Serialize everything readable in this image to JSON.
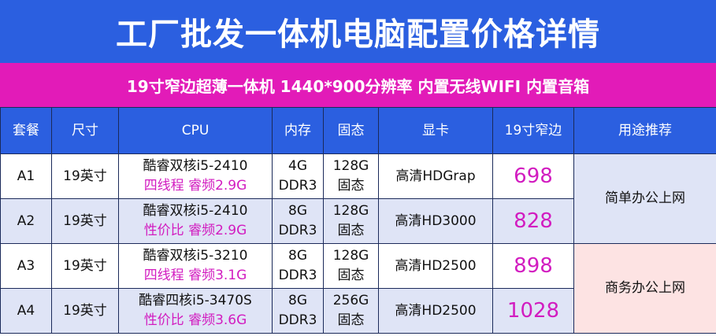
{
  "header": {
    "title": "工厂批发一体机电脑配置价格详情",
    "subtitle": "19寸窄边超薄一体机  1440*900分辨率 内置无线WIFI 内置音箱"
  },
  "table": {
    "columns": [
      "套餐",
      "尺寸",
      "CPU",
      "内存",
      "固态",
      "显卡",
      "19寸窄边",
      "用途推荐"
    ],
    "rows": [
      {
        "package": "A1",
        "size": "19英寸",
        "cpu": [
          "酷睿双核i5-2410",
          "四线程 睿频2.9G"
        ],
        "memory": [
          "4G",
          "DDR3"
        ],
        "ssd": [
          "128G",
          "固态"
        ],
        "gpu": "高清HDGrap",
        "price": 698
      },
      {
        "package": "A2",
        "size": "19英寸",
        "cpu": [
          "酷睿双核i5-2410",
          "性价比 睿频2.9G"
        ],
        "memory": [
          "8G",
          "DDR3"
        ],
        "ssd": [
          "128G",
          "固态"
        ],
        "gpu": "高清HD3000",
        "price": 828
      },
      {
        "package": "A3",
        "size": "19英寸",
        "cpu": [
          "酷睿双核i5-3210",
          "四线程 睿频3.1G"
        ],
        "memory": [
          "8G",
          "DDR3"
        ],
        "ssd": [
          "128G",
          "固态"
        ],
        "gpu": "高清HD2500",
        "price": 898
      },
      {
        "package": "A4",
        "size": "19英寸",
        "cpu": [
          "酷睿四核i5-3470S",
          "性价比 睿频3.6G"
        ],
        "memory": [
          "8G",
          "DDR3"
        ],
        "ssd": [
          "256G",
          "固态"
        ],
        "gpu": "高清HD2500",
        "price": 1028
      }
    ],
    "usage": [
      "简单办公上网",
      "商务办公上网"
    ]
  }
}
